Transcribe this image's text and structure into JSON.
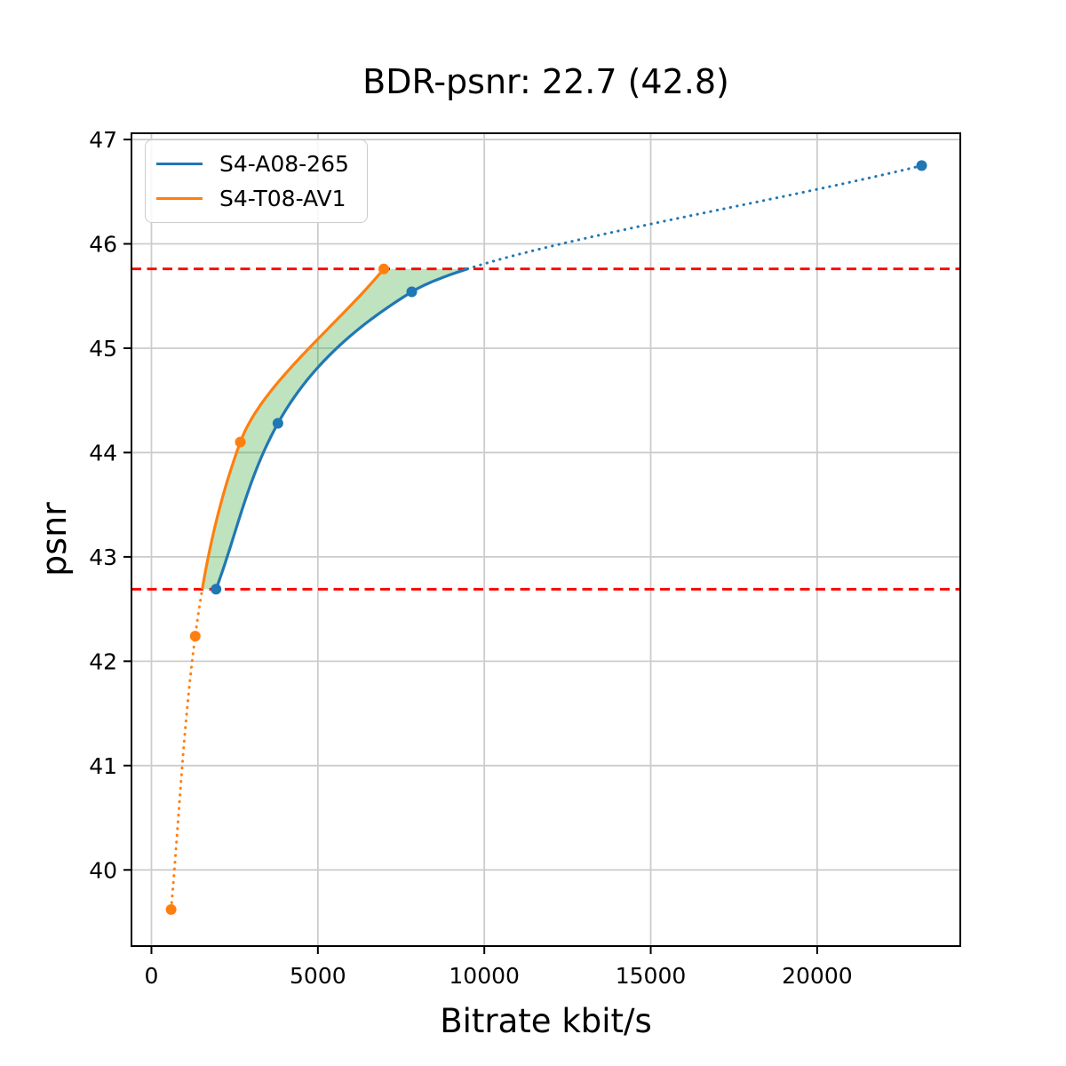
{
  "title": "BDR-psnr: 22.7 (42.8)",
  "chart_data": {
    "type": "line",
    "title": "BDR-psnr: 22.7 (42.8)",
    "xlabel": "Bitrate kbit/s",
    "ylabel": "psnr",
    "xlim": [
      -600,
      24300
    ],
    "ylim": [
      39.27,
      47.06
    ],
    "xticks": [
      0,
      5000,
      10000,
      15000,
      20000
    ],
    "yticks": [
      40,
      41,
      42,
      43,
      44,
      45,
      46,
      47
    ],
    "grid": true,
    "grid_color": "#cccccc",
    "legend_position": "upper-left",
    "series": [
      {
        "name": "S4-A08-265",
        "color": "#1f77b4",
        "points_bitrate": [
          1940,
          3800,
          7820,
          23140
        ],
        "points_psnr": [
          42.69,
          44.28,
          45.54,
          46.75
        ]
      },
      {
        "name": "S4-T08-AV1",
        "color": "#ff7f0e",
        "points_bitrate": [
          590,
          1315,
          2670,
          6980
        ],
        "points_psnr": [
          39.62,
          42.24,
          44.1,
          45.76
        ]
      }
    ],
    "bd_band": {
      "low_psnr": 42.69,
      "high_psnr": 45.76,
      "line_color": "#ff0000",
      "fill_color": "#2ca02c",
      "fill_opacity": 0.3
    }
  }
}
